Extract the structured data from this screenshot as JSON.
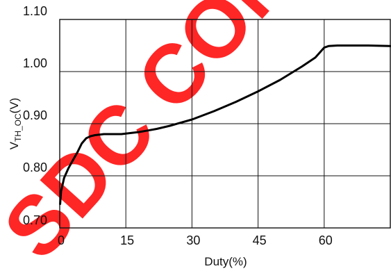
{
  "chart_data": {
    "type": "line",
    "xlabel": "Duty(%)",
    "ylabel": {
      "main": "V",
      "sub": "TH_OC",
      "unit": "(V)"
    },
    "xlim": [
      0,
      75
    ],
    "ylim": [
      0.7,
      1.1
    ],
    "xticks": [
      0,
      15,
      30,
      45,
      60
    ],
    "xtick_labels": [
      "0",
      "15",
      "30",
      "45",
      "60"
    ],
    "yticks": [
      0.7,
      0.8,
      0.9,
      1.0,
      1.1
    ],
    "ytick_labels": [
      "0.70",
      "0.80",
      "0.90",
      "1.00",
      "1.10"
    ],
    "grid": true,
    "series": [
      {
        "color": "#000000",
        "x": [
          0.1,
          0.3,
          1,
          2,
          3,
          4,
          5,
          6,
          7,
          8,
          10,
          12,
          14,
          16,
          18,
          20,
          22,
          25,
          30,
          35,
          40,
          45,
          50,
          55,
          58,
          60,
          61,
          63,
          65,
          70,
          75
        ],
        "y": [
          0.746,
          0.77,
          0.796,
          0.815,
          0.83,
          0.845,
          0.862,
          0.872,
          0.876,
          0.878,
          0.88,
          0.88,
          0.88,
          0.882,
          0.884,
          0.887,
          0.89,
          0.896,
          0.908,
          0.924,
          0.942,
          0.962,
          0.984,
          1.01,
          1.027,
          1.046,
          1.049,
          1.05,
          1.05,
          1.05,
          1.049
        ]
      }
    ]
  },
  "watermark": {
    "text": "SDC CONF",
    "color": "#ff0000"
  }
}
